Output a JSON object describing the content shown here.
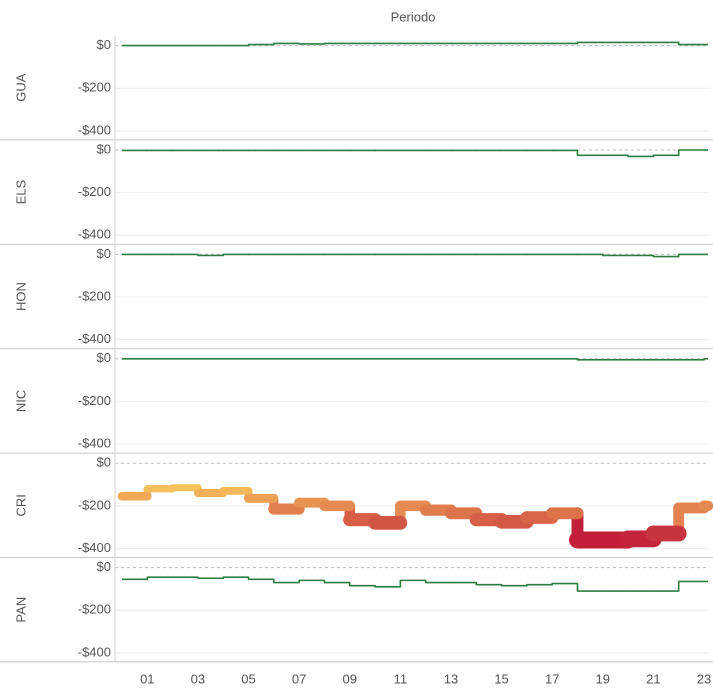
{
  "chart_data": {
    "type": "line",
    "title": "Periodo",
    "categories": [
      null,
      "01",
      null,
      "03",
      null,
      "05",
      null,
      "07",
      null,
      "09",
      null,
      "11",
      null,
      "13",
      null,
      "15",
      null,
      "17",
      null,
      "19",
      null,
      "21",
      null,
      "23"
    ],
    "ylim": [
      -440,
      45
    ],
    "yticks": [
      {
        "value": 0,
        "label": "$0"
      },
      {
        "value": -200,
        "label": "-$200"
      },
      {
        "value": -400,
        "label": "-$400"
      }
    ],
    "grid": true,
    "series": [
      {
        "name": "GUA",
        "color": "#2e7d40",
        "values": [
          0,
          0,
          0,
          0,
          0,
          5,
          10,
          8,
          10,
          10,
          10,
          10,
          10,
          10,
          10,
          10,
          10,
          10,
          15,
          15,
          15,
          15,
          5,
          5
        ]
      },
      {
        "name": "ELS",
        "color": "#2e7d40",
        "values": [
          -2,
          -2,
          -2,
          -2,
          -2,
          -2,
          -2,
          -2,
          -2,
          -2,
          -2,
          -2,
          -2,
          -2,
          -2,
          -2,
          -2,
          -2,
          -25,
          -25,
          -30,
          -25,
          0,
          0
        ]
      },
      {
        "name": "HON",
        "color": "#2e7d40",
        "values": [
          0,
          0,
          0,
          -5,
          0,
          0,
          0,
          0,
          0,
          0,
          0,
          0,
          0,
          0,
          0,
          0,
          0,
          0,
          0,
          -5,
          -5,
          -10,
          0,
          0
        ]
      },
      {
        "name": "NIC",
        "color": "#2e7d40",
        "values": [
          0,
          0,
          0,
          0,
          0,
          0,
          0,
          0,
          0,
          0,
          0,
          0,
          0,
          0,
          0,
          0,
          0,
          0,
          -5,
          -5,
          -5,
          -5,
          -5,
          0
        ]
      },
      {
        "name": "CRI",
        "color_scale": [
          "#f7c25c",
          "#c2203a"
        ],
        "values": [
          -155,
          -120,
          -115,
          -140,
          -130,
          -165,
          -215,
          -185,
          -200,
          -265,
          -280,
          -200,
          -220,
          -235,
          -265,
          -275,
          -255,
          -235,
          -360,
          -360,
          -355,
          -330,
          -210,
          -200
        ]
      },
      {
        "name": "PAN",
        "color": "#2e7d40",
        "values": [
          -55,
          -45,
          -45,
          -50,
          -45,
          -55,
          -70,
          -60,
          -70,
          -85,
          -90,
          -60,
          -70,
          -70,
          -80,
          -85,
          -80,
          -75,
          -110,
          -110,
          -110,
          -110,
          -65,
          -65
        ]
      }
    ]
  }
}
